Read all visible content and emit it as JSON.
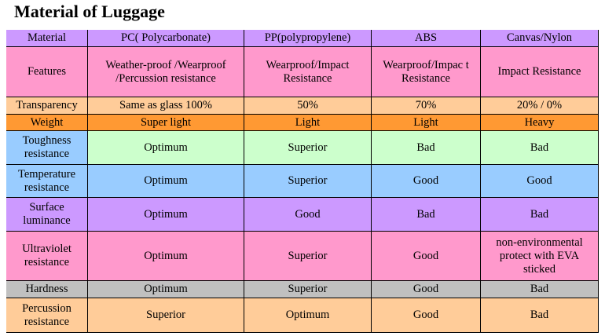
{
  "title": "Material of Luggage",
  "table": {
    "header": [
      "Material",
      "PC( Polycarbonate)",
      "PP(polypropylene)",
      "ABS",
      "Canvas/Nylon"
    ],
    "rows": [
      [
        "Features",
        "Weather-proof /Wearproof /Percussion resistance",
        "Wearproof/Impact Resistance",
        "Wearproof/Impac t Resistance",
        "Impact Resistance"
      ],
      [
        "Transparency",
        "Same as glass 100%",
        "50%",
        "70%",
        "20% / 0%"
      ],
      [
        "Weight",
        "Super light",
        "Light",
        "Light",
        "Heavy"
      ],
      [
        "Toughness resistance",
        "Optimum",
        "Superior",
        "Bad",
        "Bad"
      ],
      [
        "Temperature resistance",
        "Optimum",
        "Superior",
        "Good",
        "Good"
      ],
      [
        "Surface luminance",
        "Optimum",
        "Good",
        "Bad",
        "Bad"
      ],
      [
        "Ultraviolet resistance",
        "Optimum",
        "Superior",
        "Good",
        "non-environmental protect with EVA sticked"
      ],
      [
        "Hardness",
        "Optimum",
        "Superior",
        "Good",
        "Bad"
      ],
      [
        "Percussion resistance",
        "Superior",
        "Optimum",
        "Good",
        "Bad"
      ]
    ]
  }
}
